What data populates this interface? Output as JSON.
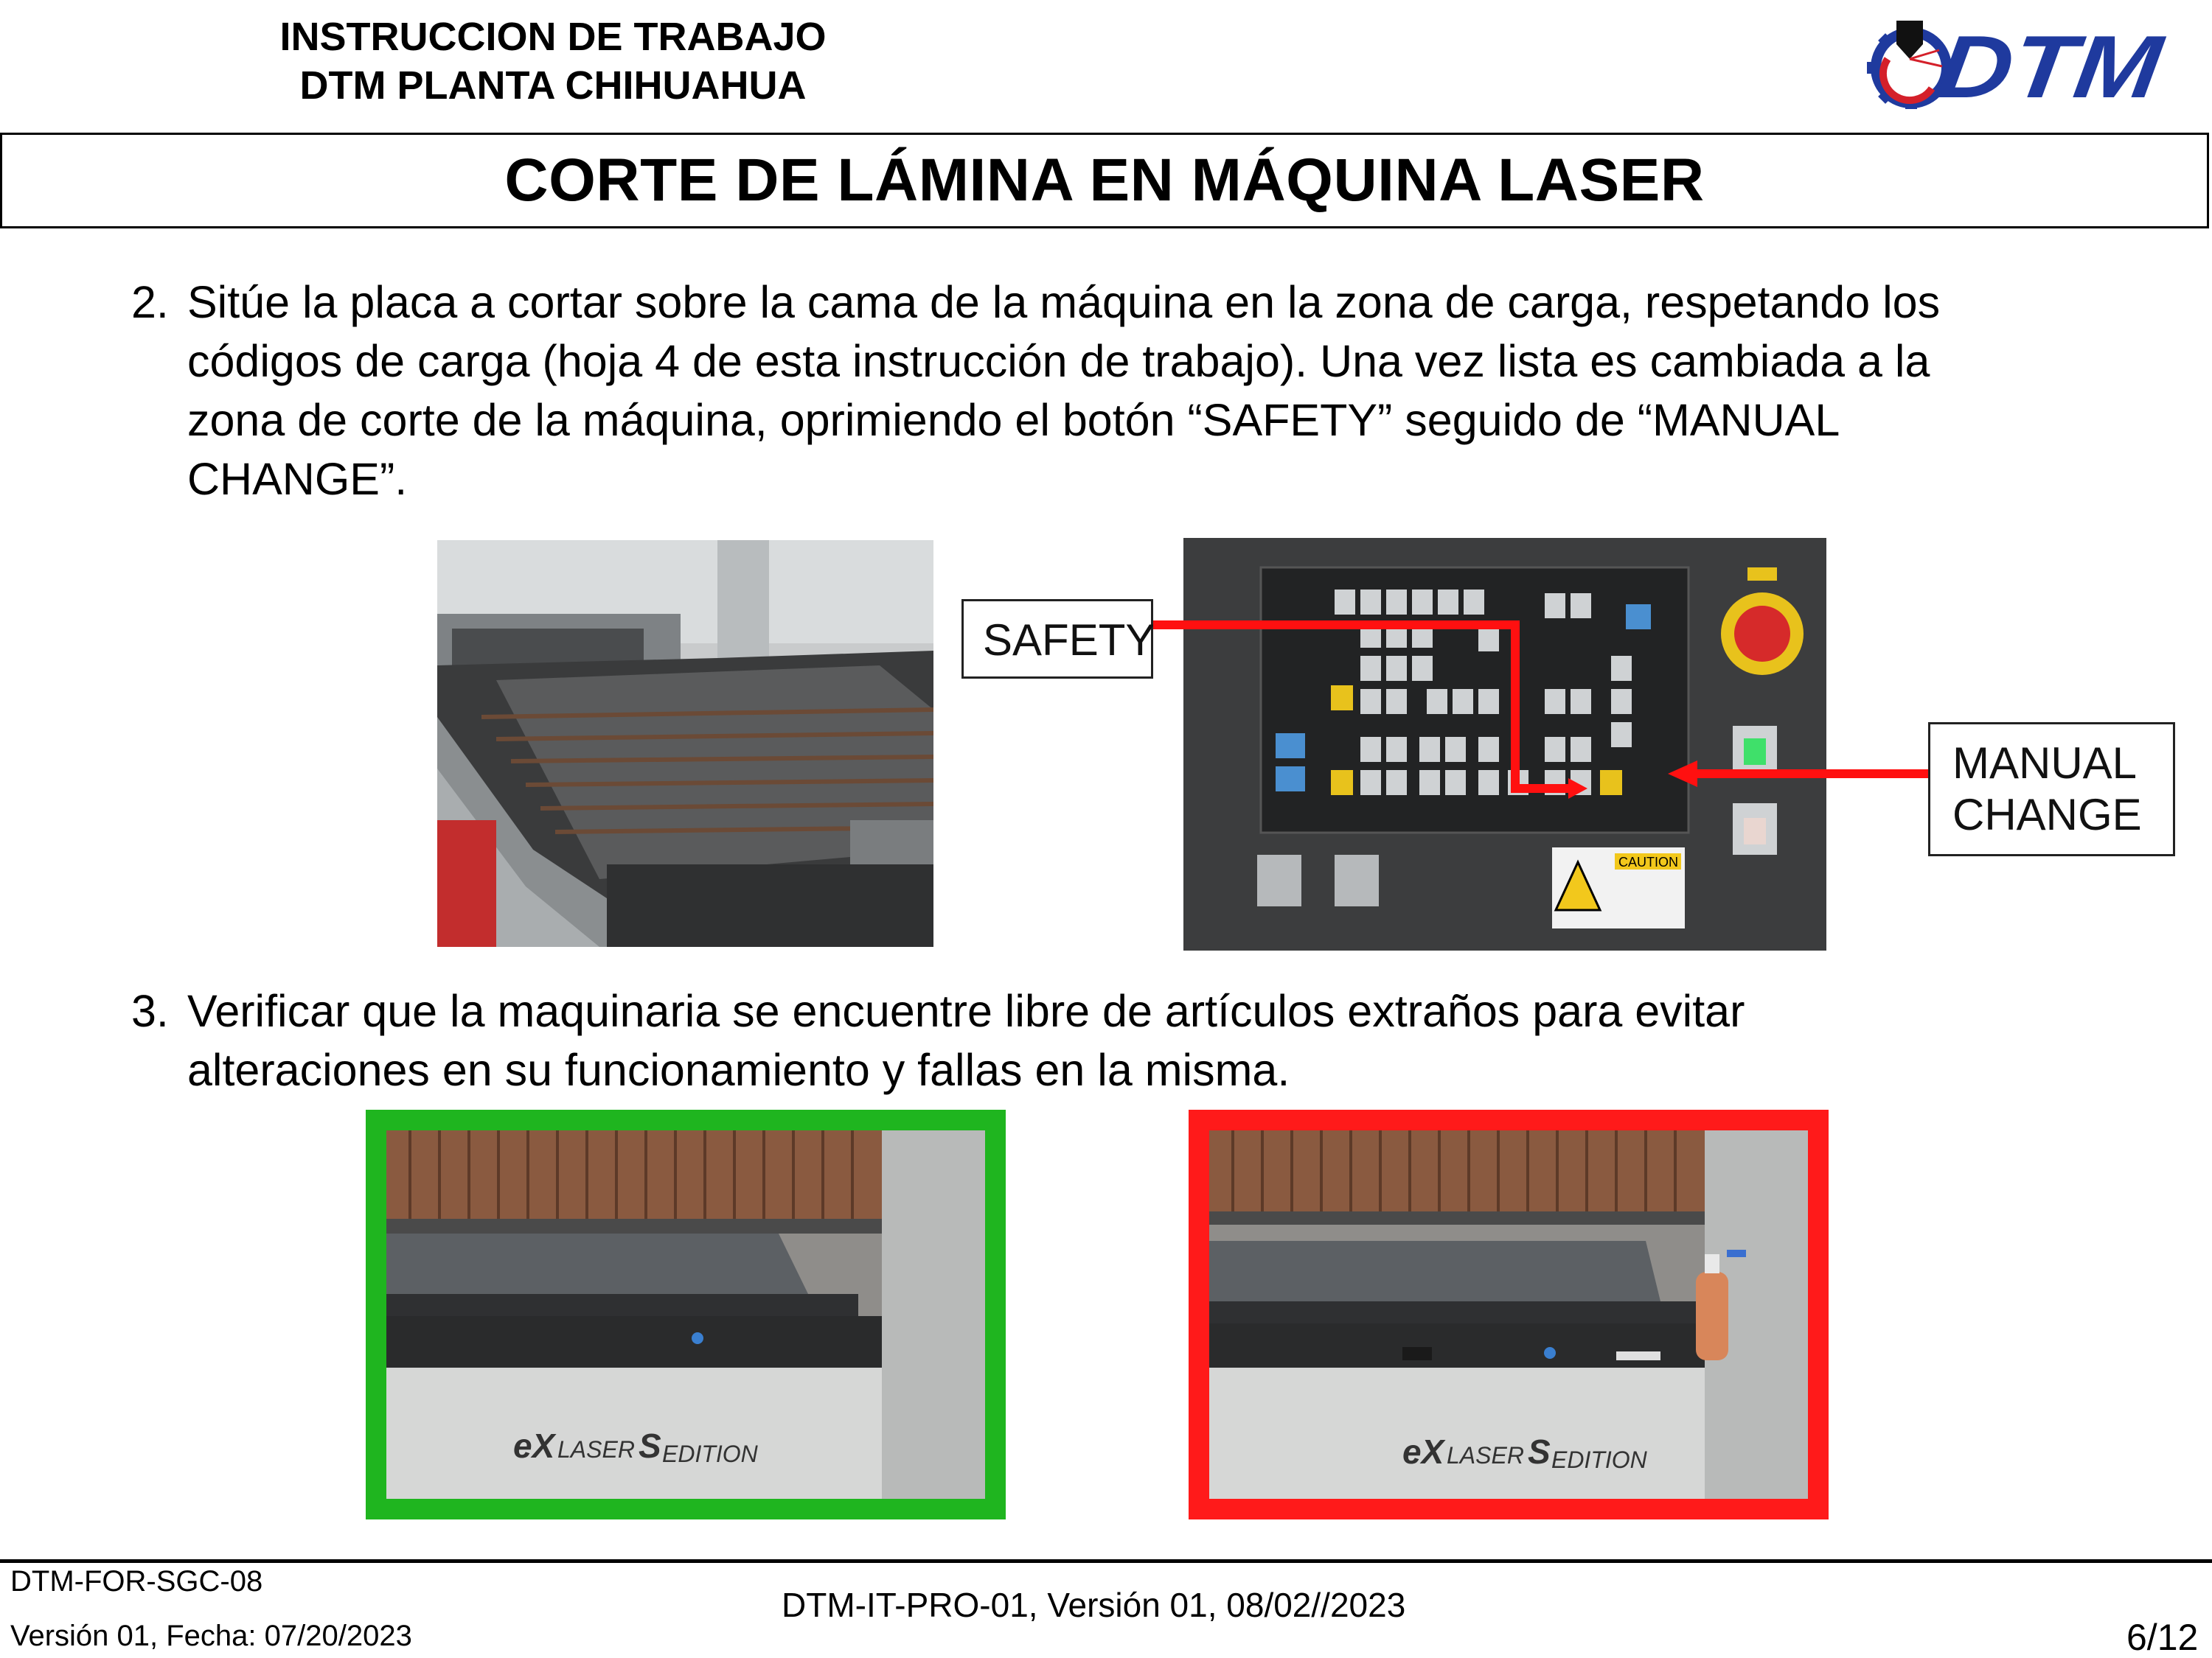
{
  "header": {
    "line1": "INSTRUCCION DE TRABAJO",
    "line2": "DTM PLANTA CHIHUAHUA",
    "logo_text": "DTM"
  },
  "title": "CORTE DE LÁMINA EN MÁQUINA LASER",
  "step2": {
    "number": "2.",
    "lines": [
      "Sitúe la placa a cortar sobre la cama de la máquina en la zona de carga, respetando los",
      "códigos de carga (hoja 4 de esta instrucción de trabajo). Una vez lista es cambiada a la",
      "zona de corte de la máquina, oprimiendo el botón “SAFETY” seguido de “MANUAL",
      "CHANGE”."
    ]
  },
  "callouts": {
    "safety": "SAFETY",
    "manual_line1": "MANUAL",
    "manual_line2": "CHANGE"
  },
  "step3": {
    "number": "3.",
    "lines": [
      "Verificar que la maquinaria se encuentre libre de artículos extraños para evitar",
      "alteraciones en su funcionamiento y fallas en la misma."
    ]
  },
  "machine_brand": {
    "ex": "eX",
    "laser": "LASER",
    "s": "S",
    "edition": "EDITION"
  },
  "panel": {
    "caution": "CAUTION"
  },
  "colors": {
    "good_frame": "#1fb51f",
    "bad_frame": "#ff1a1a",
    "arrow": "#ff1010",
    "logo_blue": "#1f3a9e",
    "logo_red": "#d4202a"
  },
  "footer": {
    "form_code": "DTM-FOR-SGC-08",
    "form_version": "Versión 01, Fecha: 07/20/2023",
    "doc_ref": "DTM-IT-PRO-01, Versión 01, 08/02//2023",
    "page": "6/12"
  }
}
